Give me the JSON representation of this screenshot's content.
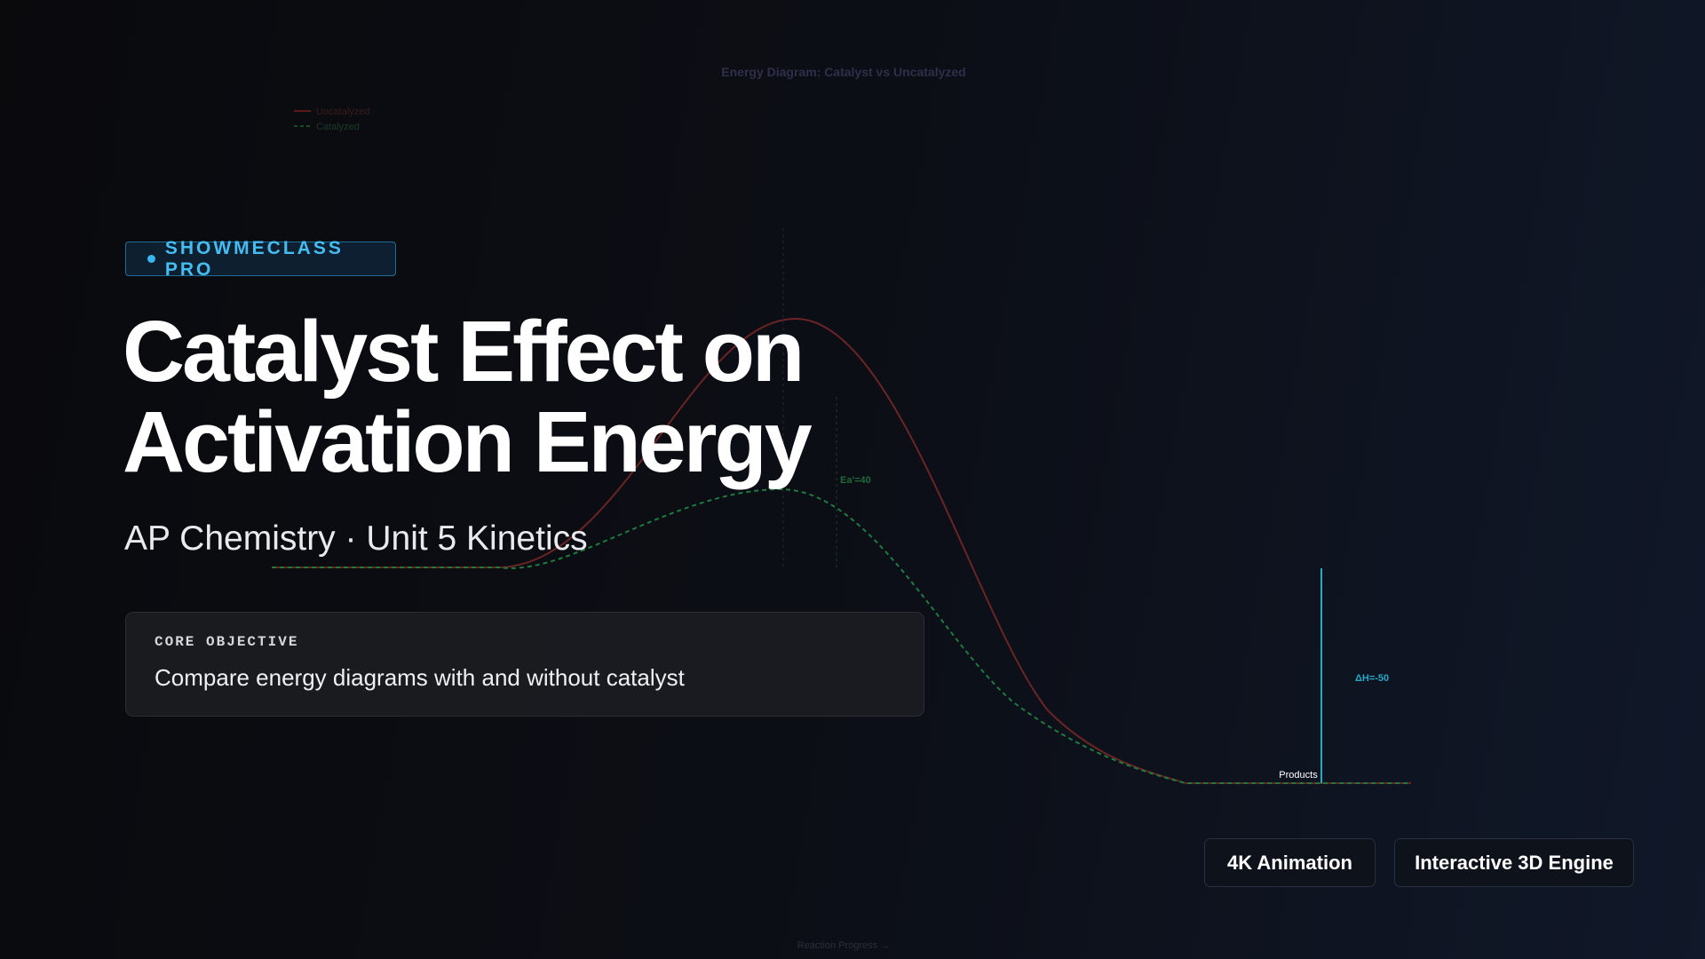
{
  "diagram": {
    "title": "Energy Diagram: Catalyst vs Uncatalyzed",
    "legend": [
      "Uncatalyzed",
      "Catalyzed"
    ],
    "catalyzed_label": "Ea'=40",
    "delta_h_label": "ΔH=-50",
    "products_label": "Products",
    "x_axis_label": "Reaction Progress →"
  },
  "badge": "SHOWMECLASS PRO",
  "title": [
    "Catalyst Effect on",
    "Activation Energy"
  ],
  "subtitle": "AP Chemistry · Unit 5 Kinetics",
  "objective": {
    "label": "CORE OBJECTIVE",
    "text": "Compare energy diagrams with and without catalyst"
  },
  "tags": [
    "4K Animation",
    "Interactive 3D Engine"
  ]
}
